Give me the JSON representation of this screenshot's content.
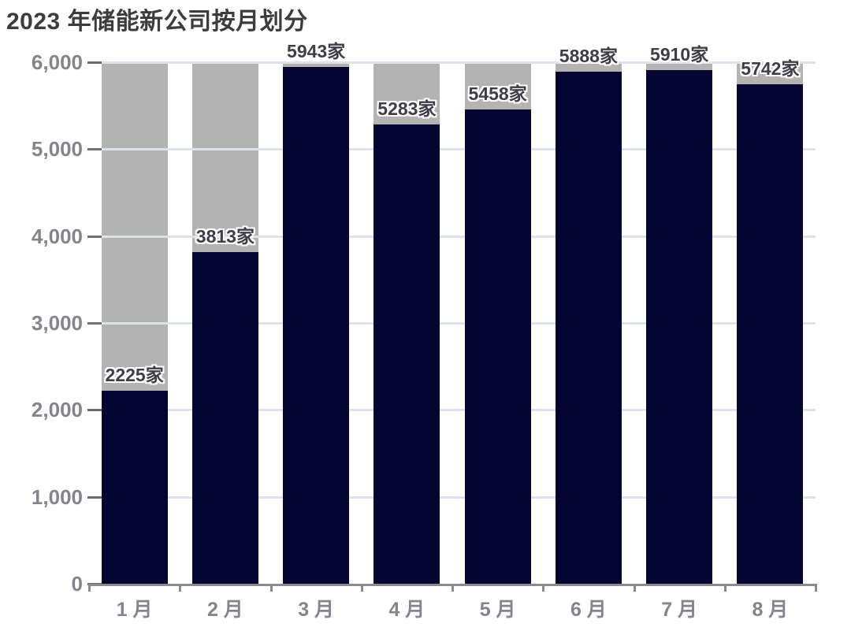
{
  "chart_data": {
    "type": "bar",
    "title": "2023 年储能新公司按月划分",
    "categories": [
      "1 月",
      "2 月",
      "3 月",
      "4 月",
      "5 月",
      "6 月",
      "7 月",
      "8 月"
    ],
    "values": [
      2225,
      3813,
      5943,
      5283,
      5458,
      5888,
      5910,
      5742
    ],
    "data_labels": [
      "2225家",
      "3813家",
      "5943家",
      "5283家",
      "5458家",
      "5888家",
      "5910家",
      "5742家"
    ],
    "value_suffix": "家",
    "xlabel": "",
    "ylabel": "",
    "ylim": [
      0,
      6000
    ],
    "track_max": 6000,
    "grid": "horizontal",
    "legend": "none",
    "yticks": [
      {
        "value": 0,
        "label": "0"
      },
      {
        "value": 1000,
        "label": "1,000"
      },
      {
        "value": 2000,
        "label": "2,000"
      },
      {
        "value": 3000,
        "label": "3,000"
      },
      {
        "value": 4000,
        "label": "4,000"
      },
      {
        "value": 5000,
        "label": "5,000"
      },
      {
        "value": 6000,
        "label": "6,000"
      }
    ],
    "colors": {
      "bar": "#050532",
      "track": "#b3b3b4",
      "gridline": "#dde2ee",
      "axis_line": "#8a8a90",
      "tick": "#6d6d75",
      "title": "#3c3c3c",
      "axis_label": "#84848e",
      "data_label": "#3e3e49",
      "data_label_outline": "#ffffff",
      "background": "#ffffff"
    }
  }
}
